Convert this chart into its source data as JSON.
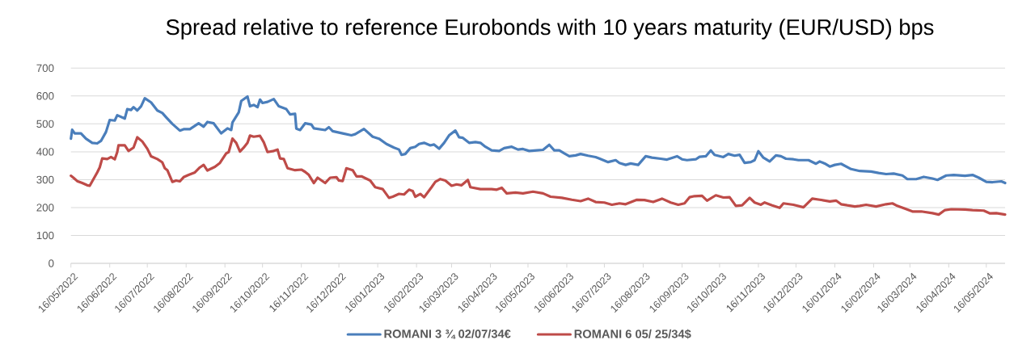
{
  "chart_data": {
    "type": "line",
    "title": "Spread relative to reference Eurobonds with 10 years maturity (EUR/USD) bps",
    "xlim": [
      "2022-05-16",
      "2024-05-31"
    ],
    "ylim": [
      0,
      700
    ],
    "yticks": [
      0,
      100,
      200,
      300,
      400,
      500,
      600,
      700
    ],
    "xticks": [
      {
        "value": "2022-05-16",
        "label": "16/05/2022"
      },
      {
        "value": "2022-06-16",
        "label": "16/06/2022"
      },
      {
        "value": "2022-07-16",
        "label": "16/07/2022"
      },
      {
        "value": "2022-08-16",
        "label": "16/08/2022"
      },
      {
        "value": "2022-09-16",
        "label": "16/09/2022"
      },
      {
        "value": "2022-10-16",
        "label": "16/10/2022"
      },
      {
        "value": "2022-11-16",
        "label": "16/11/2022"
      },
      {
        "value": "2022-12-16",
        "label": "16/12/2022"
      },
      {
        "value": "2023-01-16",
        "label": "16/01/2023"
      },
      {
        "value": "2023-02-16",
        "label": "16/02/2023"
      },
      {
        "value": "2023-03-16",
        "label": "16/03/2023"
      },
      {
        "value": "2023-04-16",
        "label": "16/04/2023"
      },
      {
        "value": "2023-05-16",
        "label": "16/05/2023"
      },
      {
        "value": "2023-06-16",
        "label": "16/06/2023"
      },
      {
        "value": "2023-07-16",
        "label": "16/07/2023"
      },
      {
        "value": "2023-08-16",
        "label": "16/08/2023"
      },
      {
        "value": "2023-09-16",
        "label": "16/09/2023"
      },
      {
        "value": "2023-10-16",
        "label": "16/10/2023"
      },
      {
        "value": "2023-11-16",
        "label": "16/11/2023"
      },
      {
        "value": "2023-12-16",
        "label": "16/12/2023"
      },
      {
        "value": "2024-01-16",
        "label": "16/01/2024"
      },
      {
        "value": "2024-02-16",
        "label": "16/02/2024"
      },
      {
        "value": "2024-03-16",
        "label": "16/03/2024"
      },
      {
        "value": "2024-04-16",
        "label": "16/04/2024"
      },
      {
        "value": "2024-05-16",
        "label": "16/05/2024"
      }
    ],
    "grid": "y",
    "legend": "bottom",
    "series": [
      {
        "name": "ROMANI 3 ¾ 02/07/34€",
        "color": "#4a7ebb",
        "x": [
          "2022-05-16",
          "2022-05-17",
          "2022-05-19",
          "2022-05-24",
          "2022-05-28",
          "2022-06-02",
          "2022-06-06",
          "2022-06-09",
          "2022-06-13",
          "2022-06-16",
          "2022-06-20",
          "2022-06-22",
          "2022-06-28",
          "2022-06-30",
          "2022-07-03",
          "2022-07-05",
          "2022-07-08",
          "2022-07-11",
          "2022-07-14",
          "2022-07-19",
          "2022-07-24",
          "2022-07-28",
          "2022-07-31",
          "2022-08-05",
          "2022-08-11",
          "2022-08-14",
          "2022-08-19",
          "2022-08-26",
          "2022-08-30",
          "2022-09-02",
          "2022-09-07",
          "2022-09-13",
          "2022-09-18",
          "2022-09-21",
          "2022-09-22",
          "2022-09-27",
          "2022-09-29",
          "2022-10-04",
          "2022-10-06",
          "2022-10-09",
          "2022-10-12",
          "2022-10-14",
          "2022-10-16",
          "2022-10-20",
          "2022-10-25",
          "2022-10-29",
          "2022-11-04",
          "2022-11-07",
          "2022-11-11",
          "2022-11-12",
          "2022-11-15",
          "2022-11-19",
          "2022-11-24",
          "2022-11-26",
          "2022-12-05",
          "2022-12-08",
          "2022-12-11",
          "2022-12-19",
          "2022-12-26",
          "2022-12-29",
          "2023-01-05",
          "2023-01-12",
          "2023-01-17",
          "2023-01-23",
          "2023-01-29",
          "2023-02-02",
          "2023-02-04",
          "2023-02-07",
          "2023-02-11",
          "2023-02-15",
          "2023-02-18",
          "2023-02-22",
          "2023-02-27",
          "2023-03-02",
          "2023-03-06",
          "2023-03-10",
          "2023-03-14",
          "2023-03-19",
          "2023-03-22",
          "2023-03-25",
          "2023-03-30",
          "2023-04-04",
          "2023-04-08",
          "2023-04-12",
          "2023-04-17",
          "2023-04-23",
          "2023-04-27",
          "2023-05-03",
          "2023-05-08",
          "2023-05-12",
          "2023-05-17",
          "2023-05-23",
          "2023-05-28",
          "2023-06-02",
          "2023-06-06",
          "2023-06-10",
          "2023-06-14",
          "2023-06-18",
          "2023-06-23",
          "2023-06-27",
          "2023-07-03",
          "2023-07-09",
          "2023-07-12",
          "2023-07-19",
          "2023-07-25",
          "2023-07-28",
          "2023-08-02",
          "2023-08-06",
          "2023-08-12",
          "2023-08-18",
          "2023-08-23",
          "2023-08-30",
          "2023-09-04",
          "2023-09-12",
          "2023-09-16",
          "2023-09-20",
          "2023-09-27",
          "2023-09-30",
          "2023-10-05",
          "2023-10-09",
          "2023-10-12",
          "2023-10-19",
          "2023-10-23",
          "2023-10-28",
          "2023-11-01",
          "2023-11-05",
          "2023-11-10",
          "2023-11-13",
          "2023-11-16",
          "2023-11-20",
          "2023-11-25",
          "2023-11-30",
          "2023-12-04",
          "2023-12-08",
          "2023-12-14",
          "2023-12-18",
          "2023-12-26",
          "2024-01-01",
          "2024-01-04",
          "2024-01-08",
          "2024-01-12",
          "2024-01-16",
          "2024-01-21",
          "2024-01-29",
          "2024-02-05",
          "2024-02-14",
          "2024-02-20",
          "2024-02-26",
          "2024-03-03",
          "2024-03-10",
          "2024-03-14",
          "2024-03-21",
          "2024-03-27",
          "2024-04-03",
          "2024-04-07",
          "2024-04-14",
          "2024-04-20",
          "2024-04-29",
          "2024-05-05",
          "2024-05-10",
          "2024-05-16",
          "2024-05-21",
          "2024-05-28",
          "2024-05-31"
        ],
        "values": [
          447,
          479,
          466,
          466,
          447,
          432,
          430,
          439,
          471,
          514,
          512,
          531,
          519,
          553,
          550,
          560,
          548,
          563,
          592,
          577,
          548,
          539,
          524,
          500,
          476,
          481,
          481,
          502,
          490,
          507,
          502,
          466,
          484,
          478,
          505,
          541,
          582,
          598,
          563,
          568,
          560,
          587,
          575,
          579,
          589,
          563,
          553,
          534,
          536,
          483,
          478,
          502,
          498,
          484,
          478,
          488,
          474,
          466,
          459,
          463,
          482,
          454,
          447,
          428,
          415,
          408,
          389,
          392,
          413,
          418,
          428,
          432,
          423,
          426,
          411,
          432,
          459,
          476,
          452,
          450,
          432,
          435,
          432,
          418,
          405,
          403,
          413,
          418,
          408,
          410,
          403,
          405,
          407,
          425,
          405,
          405,
          394,
          384,
          387,
          392,
          386,
          381,
          376,
          363,
          370,
          360,
          353,
          358,
          353,
          384,
          379,
          375,
          372,
          384,
          373,
          370,
          373,
          382,
          384,
          405,
          389,
          381,
          392,
          386,
          389,
          360,
          363,
          370,
          402,
          379,
          365,
          387,
          384,
          375,
          373,
          370,
          370,
          357,
          365,
          358,
          347,
          353,
          357,
          338,
          331,
          329,
          324,
          320,
          322,
          315,
          302,
          302,
          310,
          304,
          299,
          315,
          317,
          314,
          317,
          307,
          292,
          291,
          294,
          288
        ]
      },
      {
        "name": "ROMANI 6 05/ 25/34$",
        "color": "#be4b48",
        "x": [
          "2022-05-16",
          "2022-05-18",
          "2022-05-21",
          "2022-05-25",
          "2022-05-29",
          "2022-05-31",
          "2022-06-06",
          "2022-06-08",
          "2022-06-10",
          "2022-06-14",
          "2022-06-17",
          "2022-06-20",
          "2022-06-22",
          "2022-06-23",
          "2022-06-28",
          "2022-07-01",
          "2022-07-05",
          "2022-07-08",
          "2022-07-12",
          "2022-07-16",
          "2022-07-19",
          "2022-07-24",
          "2022-07-28",
          "2022-07-30",
          "2022-08-01",
          "2022-08-05",
          "2022-08-08",
          "2022-08-11",
          "2022-08-14",
          "2022-08-18",
          "2022-08-23",
          "2022-08-27",
          "2022-08-30",
          "2022-09-02",
          "2022-09-08",
          "2022-09-12",
          "2022-09-17",
          "2022-09-19",
          "2022-09-22",
          "2022-09-25",
          "2022-09-28",
          "2022-10-01",
          "2022-10-04",
          "2022-10-06",
          "2022-10-09",
          "2022-10-14",
          "2022-10-17",
          "2022-10-20",
          "2022-10-25",
          "2022-10-28",
          "2022-10-30",
          "2022-11-02",
          "2022-11-05",
          "2022-11-11",
          "2022-11-16",
          "2022-11-19",
          "2022-11-22",
          "2022-11-26",
          "2022-11-29",
          "2022-12-05",
          "2022-12-09",
          "2022-12-14",
          "2022-12-16",
          "2022-12-19",
          "2022-12-22",
          "2022-12-27",
          "2022-12-30",
          "2023-01-03",
          "2023-01-10",
          "2023-01-14",
          "2023-01-20",
          "2023-01-25",
          "2023-01-28",
          "2023-02-02",
          "2023-02-06",
          "2023-02-10",
          "2023-02-13",
          "2023-02-15",
          "2023-02-19",
          "2023-02-22",
          "2023-02-28",
          "2023-03-03",
          "2023-03-07",
          "2023-03-11",
          "2023-03-16",
          "2023-03-20",
          "2023-03-24",
          "2023-03-29",
          "2023-03-31",
          "2023-04-08",
          "2023-04-17",
          "2023-04-21",
          "2023-04-25",
          "2023-04-29",
          "2023-05-06",
          "2023-05-12",
          "2023-05-20",
          "2023-05-28",
          "2023-06-03",
          "2023-06-12",
          "2023-06-20",
          "2023-06-27",
          "2023-07-03",
          "2023-07-09",
          "2023-07-16",
          "2023-07-22",
          "2023-07-28",
          "2023-08-02",
          "2023-08-11",
          "2023-08-17",
          "2023-08-24",
          "2023-08-31",
          "2023-09-07",
          "2023-09-13",
          "2023-09-18",
          "2023-09-22",
          "2023-09-26",
          "2023-10-02",
          "2023-10-06",
          "2023-10-13",
          "2023-10-19",
          "2023-10-24",
          "2023-10-29",
          "2023-11-03",
          "2023-11-09",
          "2023-11-13",
          "2023-11-18",
          "2023-11-21",
          "2023-11-27",
          "2023-12-03",
          "2023-12-06",
          "2023-12-14",
          "2023-12-22",
          "2023-12-29",
          "2024-01-04",
          "2024-01-12",
          "2024-01-17",
          "2024-01-21",
          "2024-01-26",
          "2024-02-01",
          "2024-02-05",
          "2024-02-10",
          "2024-02-18",
          "2024-02-26",
          "2024-03-02",
          "2024-03-05",
          "2024-03-12",
          "2024-03-18",
          "2024-03-25",
          "2024-04-03",
          "2024-04-08",
          "2024-04-13",
          "2024-04-18",
          "2024-04-29",
          "2024-05-05",
          "2024-05-14",
          "2024-05-19",
          "2024-05-24",
          "2024-05-31"
        ],
        "values": [
          314,
          307,
          295,
          288,
          280,
          278,
          326,
          344,
          376,
          374,
          381,
          373,
          399,
          423,
          423,
          403,
          415,
          452,
          437,
          411,
          384,
          374,
          362,
          341,
          334,
          292,
          297,
          294,
          309,
          317,
          326,
          344,
          353,
          333,
          346,
          360,
          394,
          399,
          447,
          432,
          401,
          415,
          432,
          458,
          454,
          457,
          434,
          399,
          403,
          408,
          376,
          374,
          341,
          334,
          336,
          328,
          317,
          288,
          307,
          288,
          307,
          309,
          297,
          295,
          341,
          334,
          312,
          312,
          297,
          273,
          266,
          235,
          239,
          249,
          247,
          264,
          259,
          239,
          249,
          237,
          273,
          292,
          302,
          297,
          278,
          283,
          280,
          299,
          273,
          266,
          266,
          264,
          271,
          251,
          254,
          251,
          257,
          251,
          239,
          235,
          228,
          223,
          232,
          220,
          218,
          210,
          215,
          212,
          228,
          227,
          220,
          232,
          218,
          210,
          215,
          237,
          241,
          242,
          225,
          244,
          236,
          237,
          206,
          208,
          235,
          218,
          210,
          218,
          208,
          199,
          215,
          210,
          201,
          232,
          228,
          222,
          225,
          212,
          208,
          204,
          206,
          210,
          204,
          212,
          215,
          208,
          196,
          186,
          186,
          180,
          175,
          191,
          194,
          193,
          191,
          189,
          179,
          180,
          175
        ]
      }
    ]
  }
}
